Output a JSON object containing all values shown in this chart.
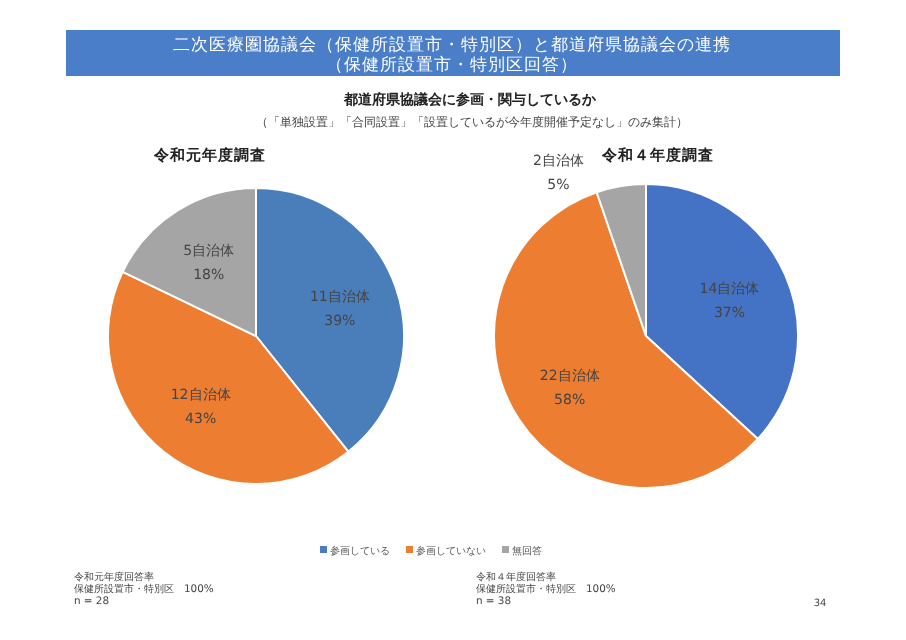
{
  "chart_data": [
    {
      "type": "pie",
      "title": "令和元年度調査",
      "annotations": [
        "二次医療圏協議会（保健所設置市・特別区）と都道府県協議会の連携",
        "（保健所設置市・特別区回答）",
        "都道府県協議会に参画・関与しているか",
        "（「単独設置」「合同設置」「設置しているが今年度開催予定なし」のみ集計）",
        "令和元年度回答率",
        "保健所設置市・特別区　100%",
        "n = 28"
      ],
      "categories": [
        "参画している",
        "参画していない",
        "無回答"
      ],
      "values": [
        11,
        12,
        5
      ],
      "value_labels": [
        "11自治体 39%",
        "12自治体 43%",
        "5自治体 18%"
      ],
      "colors": [
        "#4a7ebb",
        "#ed7d31",
        "#a5a5a5"
      ],
      "legend": "bottom"
    },
    {
      "type": "pie",
      "title": "令和４年度調査",
      "annotations": [
        "令和４年度回答率",
        "保健所設置市・特別区　100%",
        "n = 38",
        "34"
      ],
      "values": [
        14,
        22,
        2
      ],
      "value_labels": [
        "14自治体 37%",
        "22自治体 58%",
        "2自治体 5%"
      ],
      "colors": [
        "#4472c4",
        "#ed7d31",
        "#a5a5a5"
      ]
    }
  ]
}
